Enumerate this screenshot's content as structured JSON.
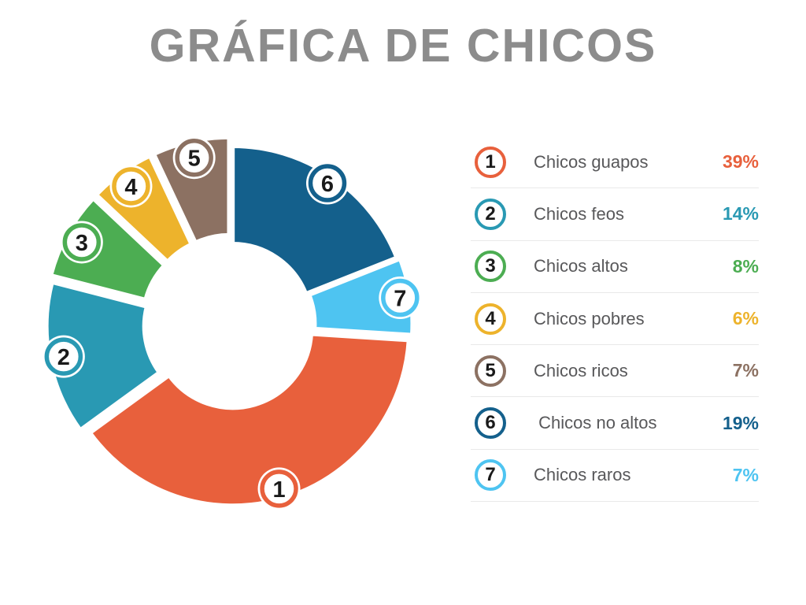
{
  "title": {
    "text": "GRÁFICA DE CHICOS",
    "color": "#8C8C8C"
  },
  "chart_data": {
    "type": "pie",
    "subtype": "exploded-donut",
    "legend_position": "right",
    "start_angle_deg": 0,
    "clockwise_order": [
      6,
      7,
      1,
      2,
      3,
      4,
      5
    ],
    "items": [
      {
        "id": 1,
        "label": "Chicos guapos",
        "value": 39,
        "pct_label": "39%",
        "color": "#E8603C"
      },
      {
        "id": 2,
        "label": "Chicos feos",
        "value": 14,
        "pct_label": "14%",
        "color": "#2999B3"
      },
      {
        "id": 3,
        "label": "Chicos altos",
        "value": 8,
        "pct_label": "8%",
        "color": "#4CAD52"
      },
      {
        "id": 4,
        "label": "Chicos pobres",
        "value": 6,
        "pct_label": "6%",
        "color": "#EDB32C"
      },
      {
        "id": 5,
        "label": "Chicos ricos",
        "value": 7,
        "pct_label": "7%",
        "color": "#8C7162"
      },
      {
        "id": 6,
        "label": " Chicos no altos",
        "value": 19,
        "pct_label": "19%",
        "color": "#14608C"
      },
      {
        "id": 7,
        "label": "Chicos raros",
        "value": 7,
        "pct_label": "7%",
        "color": "#4EC4F1"
      }
    ],
    "badge_number_color": "#1a1a1a",
    "label_color": "#58585A",
    "separator_color": "#E9E9E9"
  }
}
